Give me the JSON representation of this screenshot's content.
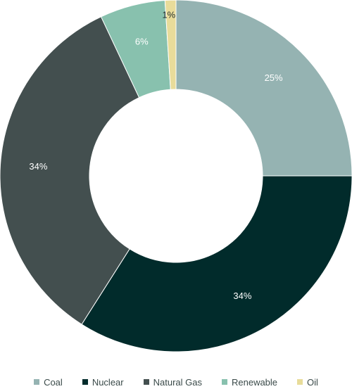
{
  "chart_data": {
    "type": "pie",
    "title": "",
    "donut": true,
    "categories": [
      "Coal",
      "Nuclear",
      "Natural Gas",
      "Renewable",
      "Oil"
    ],
    "values": [
      25,
      34,
      34,
      6,
      1
    ],
    "value_labels": [
      "25%",
      "34%",
      "34%",
      "6%",
      "1%"
    ],
    "colors": [
      "#95b3b2",
      "#012b2b",
      "#434f4f",
      "#88c1ae",
      "#e8dc9a"
    ],
    "legend_position": "bottom",
    "start_angle_deg": 0
  }
}
